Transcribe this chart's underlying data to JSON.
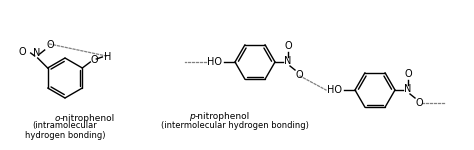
{
  "bg_color": "#ffffff",
  "fig_width": 4.74,
  "fig_height": 1.5,
  "dpi": 100,
  "o_label_italic": "o",
  "o_label_rest": "-nitrophenol",
  "o_sublabel": "(intramolecular\nhydrogen bonding)",
  "p_label_italic": "p",
  "p_label_rest": "-nitrophenol",
  "p_sublabel": "(intermolecular hydrogen bonding)"
}
